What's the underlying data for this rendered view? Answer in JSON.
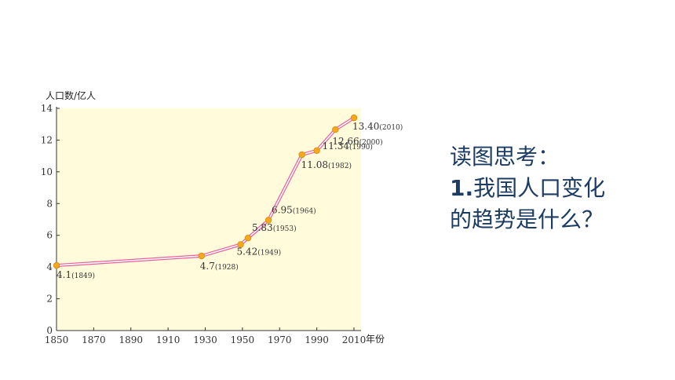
{
  "question": {
    "title": "读图思考：",
    "number": "1.",
    "line1_text": "我国人口变化",
    "line2_text": "的趋势是什么？"
  },
  "colors": {
    "plot_background": "#fffbdb",
    "line_outer": "#e8609c",
    "line_inner": "#ffffff",
    "marker_fill": "#f5a81c",
    "marker_stroke": "#d88a10",
    "axis": "#333333",
    "text": "#1c3c63"
  },
  "chart_data": {
    "type": "line",
    "ylabel": "人口数/亿人",
    "xlabel": "年份",
    "xlim": [
      1850,
      2010
    ],
    "ylim": [
      0,
      14
    ],
    "x_ticks": [
      1850,
      1870,
      1890,
      1910,
      1930,
      1950,
      1970,
      1990,
      2010
    ],
    "y_ticks": [
      0,
      2,
      4,
      6,
      8,
      10,
      12,
      14
    ],
    "grid": false,
    "legend": "none",
    "points": [
      {
        "x": 1849,
        "y": 4.1,
        "value_label": "4.1",
        "year_label": "(1849)"
      },
      {
        "x": 1928,
        "y": 4.7,
        "value_label": "4.7",
        "year_label": "(1928)"
      },
      {
        "x": 1949,
        "y": 5.42,
        "value_label": "5.42",
        "year_label": "(1949)"
      },
      {
        "x": 1953,
        "y": 5.83,
        "value_label": "5.83",
        "year_label": "(1953)"
      },
      {
        "x": 1964,
        "y": 6.95,
        "value_label": "6.95",
        "year_label": "(1964)"
      },
      {
        "x": 1982,
        "y": 11.08,
        "value_label": "11.08",
        "year_label": "(1982)"
      },
      {
        "x": 1990,
        "y": 11.34,
        "value_label": "11.34",
        "year_label": "(1990)"
      },
      {
        "x": 2000,
        "y": 12.66,
        "value_label": "12.66",
        "year_label": "(2000)"
      },
      {
        "x": 2010,
        "y": 13.4,
        "value_label": "13.40",
        "year_label": "(2010)"
      }
    ]
  }
}
